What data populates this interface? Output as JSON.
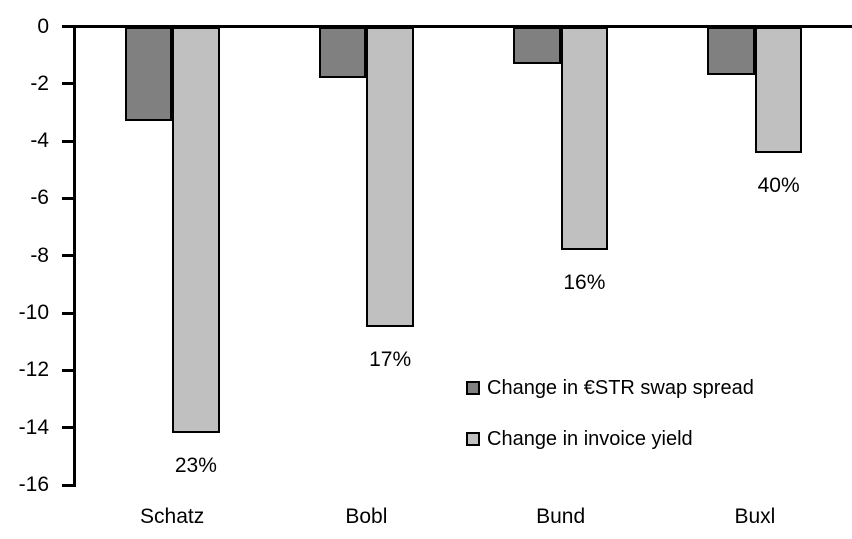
{
  "chart_data": {
    "type": "bar",
    "orientation": "vertical",
    "title": "",
    "xlabel": "",
    "ylabel": "",
    "categories": [
      "Schatz",
      "Bobl",
      "Bund",
      "Buxl"
    ],
    "series": [
      {
        "name": "Change in €STR swap spread",
        "color": "#808080",
        "values": [
          -3.3,
          -1.8,
          -1.3,
          -1.7
        ]
      },
      {
        "name": "Change in invoice yield",
        "color": "#c0c0c0",
        "values": [
          -14.2,
          -10.5,
          -7.8,
          -4.4
        ],
        "point_labels": [
          "23%",
          "17%",
          "16%",
          "40%"
        ]
      }
    ],
    "ylim": [
      -16,
      0
    ],
    "y_ticks": [
      0,
      -2,
      -4,
      -6,
      -8,
      -10,
      -12,
      -14,
      -16
    ],
    "grid": false,
    "legend_position": "inside-right",
    "bar_border_color": "#000000",
    "axis_color": "#000000",
    "text_color": "#000000",
    "background_color": "#ffffff"
  }
}
